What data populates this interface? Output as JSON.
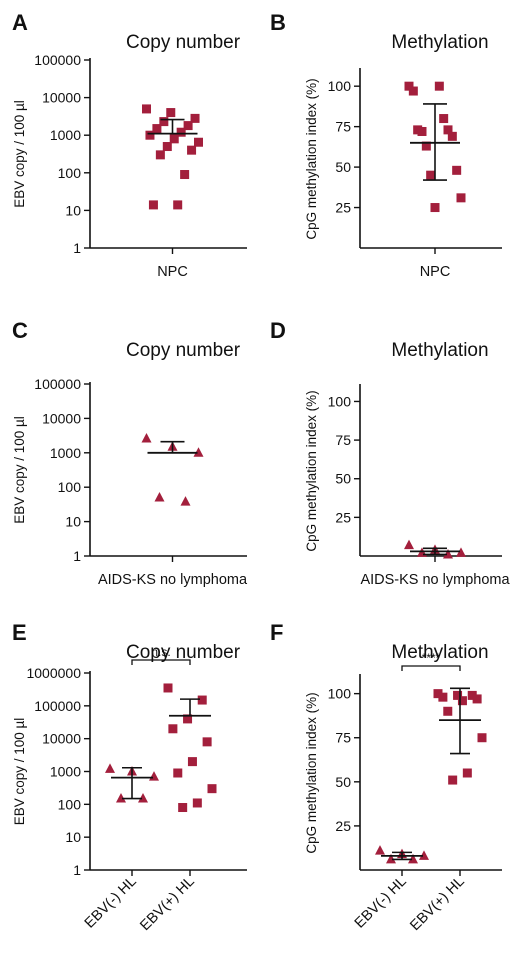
{
  "chart_data": [
    {
      "panel": "A",
      "title": "Copy number",
      "type": "scatter",
      "ylabel": "EBV copy / 100 µl",
      "yscale": "log",
      "ylim": [
        1,
        100000
      ],
      "yticks": [
        "1",
        "10",
        "100",
        "1000",
        "10000",
        "100000"
      ],
      "categories": [
        "NPC"
      ],
      "marker": "square",
      "color": "#a31f3c",
      "series": [
        {
          "category": "NPC",
          "values": [
            5000,
            4000,
            2800,
            2300,
            1800,
            1500,
            1200,
            1000,
            800,
            650,
            500,
            400,
            300,
            90,
            14,
            14
          ]
        }
      ],
      "mean": [
        1100
      ],
      "error_upper": [
        2600
      ],
      "error_lower": [
        0
      ]
    },
    {
      "panel": "B",
      "title": "Methylation",
      "type": "scatter",
      "ylabel": "CpG methylation index (%)",
      "yscale": "linear",
      "ylim": [
        0,
        110
      ],
      "yticks": [
        "25",
        "50",
        "75",
        "100"
      ],
      "categories": [
        "NPC"
      ],
      "marker": "square",
      "color": "#a31f3c",
      "series": [
        {
          "category": "NPC",
          "values": [
            100,
            100,
            97,
            80,
            73,
            73,
            72,
            69,
            63,
            48,
            45,
            31,
            25
          ]
        }
      ],
      "mean": [
        65
      ],
      "error_upper": [
        89
      ],
      "error_lower": [
        42
      ]
    },
    {
      "panel": "C",
      "title": "Copy number",
      "type": "scatter",
      "ylabel": "EBV copy / 100 µl",
      "yscale": "log",
      "ylim": [
        1,
        100000
      ],
      "yticks": [
        "1",
        "10",
        "100",
        "1000",
        "10000",
        "100000"
      ],
      "categories": [
        "AIDS-KS no lymphoma"
      ],
      "marker": "triangle",
      "color": "#a31f3c",
      "series": [
        {
          "category": "AIDS-KS no lymphoma",
          "values": [
            2600,
            1500,
            1000,
            50,
            38
          ]
        }
      ],
      "mean": [
        1000
      ],
      "error_upper": [
        2100
      ],
      "error_lower": [
        0
      ]
    },
    {
      "panel": "D",
      "title": "Methylation",
      "type": "scatter",
      "ylabel": "CpG methylation index (%)",
      "yscale": "linear",
      "ylim": [
        0,
        110
      ],
      "yticks": [
        "25",
        "50",
        "75",
        "100"
      ],
      "categories": [
        "AIDS-KS no lymphoma"
      ],
      "marker": "triangle",
      "color": "#a31f3c",
      "series": [
        {
          "category": "AIDS-KS no lymphoma",
          "values": [
            7,
            4,
            2,
            2,
            1
          ]
        }
      ],
      "mean": [
        3
      ],
      "error_upper": [
        5
      ],
      "error_lower": [
        1
      ]
    },
    {
      "panel": "E",
      "title": "Copy number",
      "type": "scatter",
      "ylabel": "EBV copy / 100 µl",
      "yscale": "log",
      "ylim": [
        1,
        1000000
      ],
      "yticks": [
        "1",
        "10",
        "100",
        "1000",
        "10000",
        "100000",
        "1000000"
      ],
      "categories": [
        "EBV(-) HL",
        "EBV(+) HL"
      ],
      "color": "#a31f3c",
      "series": [
        {
          "category": "EBV(-) HL",
          "marker": "triangle",
          "values": [
            1200,
            1000,
            700,
            150,
            150
          ]
        },
        {
          "category": "EBV(+) HL",
          "marker": "square",
          "values": [
            350000,
            150000,
            40000,
            20000,
            8000,
            2000,
            900,
            300,
            110,
            80
          ]
        }
      ],
      "mean": [
        650,
        50000
      ],
      "error_upper": [
        1300,
        160000
      ],
      "error_lower": [
        150,
        0
      ],
      "significance": "n.s."
    },
    {
      "panel": "F",
      "title": "Methylation",
      "type": "scatter",
      "ylabel": "CpG methylation index (%)",
      "yscale": "linear",
      "ylim": [
        0,
        110
      ],
      "yticks": [
        "25",
        "50",
        "75",
        "100"
      ],
      "categories": [
        "EBV(-) HL",
        "EBV(+) HL"
      ],
      "color": "#a31f3c",
      "series": [
        {
          "category": "EBV(-) HL",
          "marker": "triangle",
          "values": [
            11,
            9,
            8,
            6,
            6
          ]
        },
        {
          "category": "EBV(+) HL",
          "marker": "square",
          "values": [
            100,
            99,
            99,
            98,
            97,
            96,
            90,
            75,
            55,
            51
          ]
        }
      ],
      "mean": [
        8,
        85
      ],
      "error_upper": [
        10,
        103
      ],
      "error_lower": [
        6,
        66
      ],
      "significance": "****"
    }
  ]
}
